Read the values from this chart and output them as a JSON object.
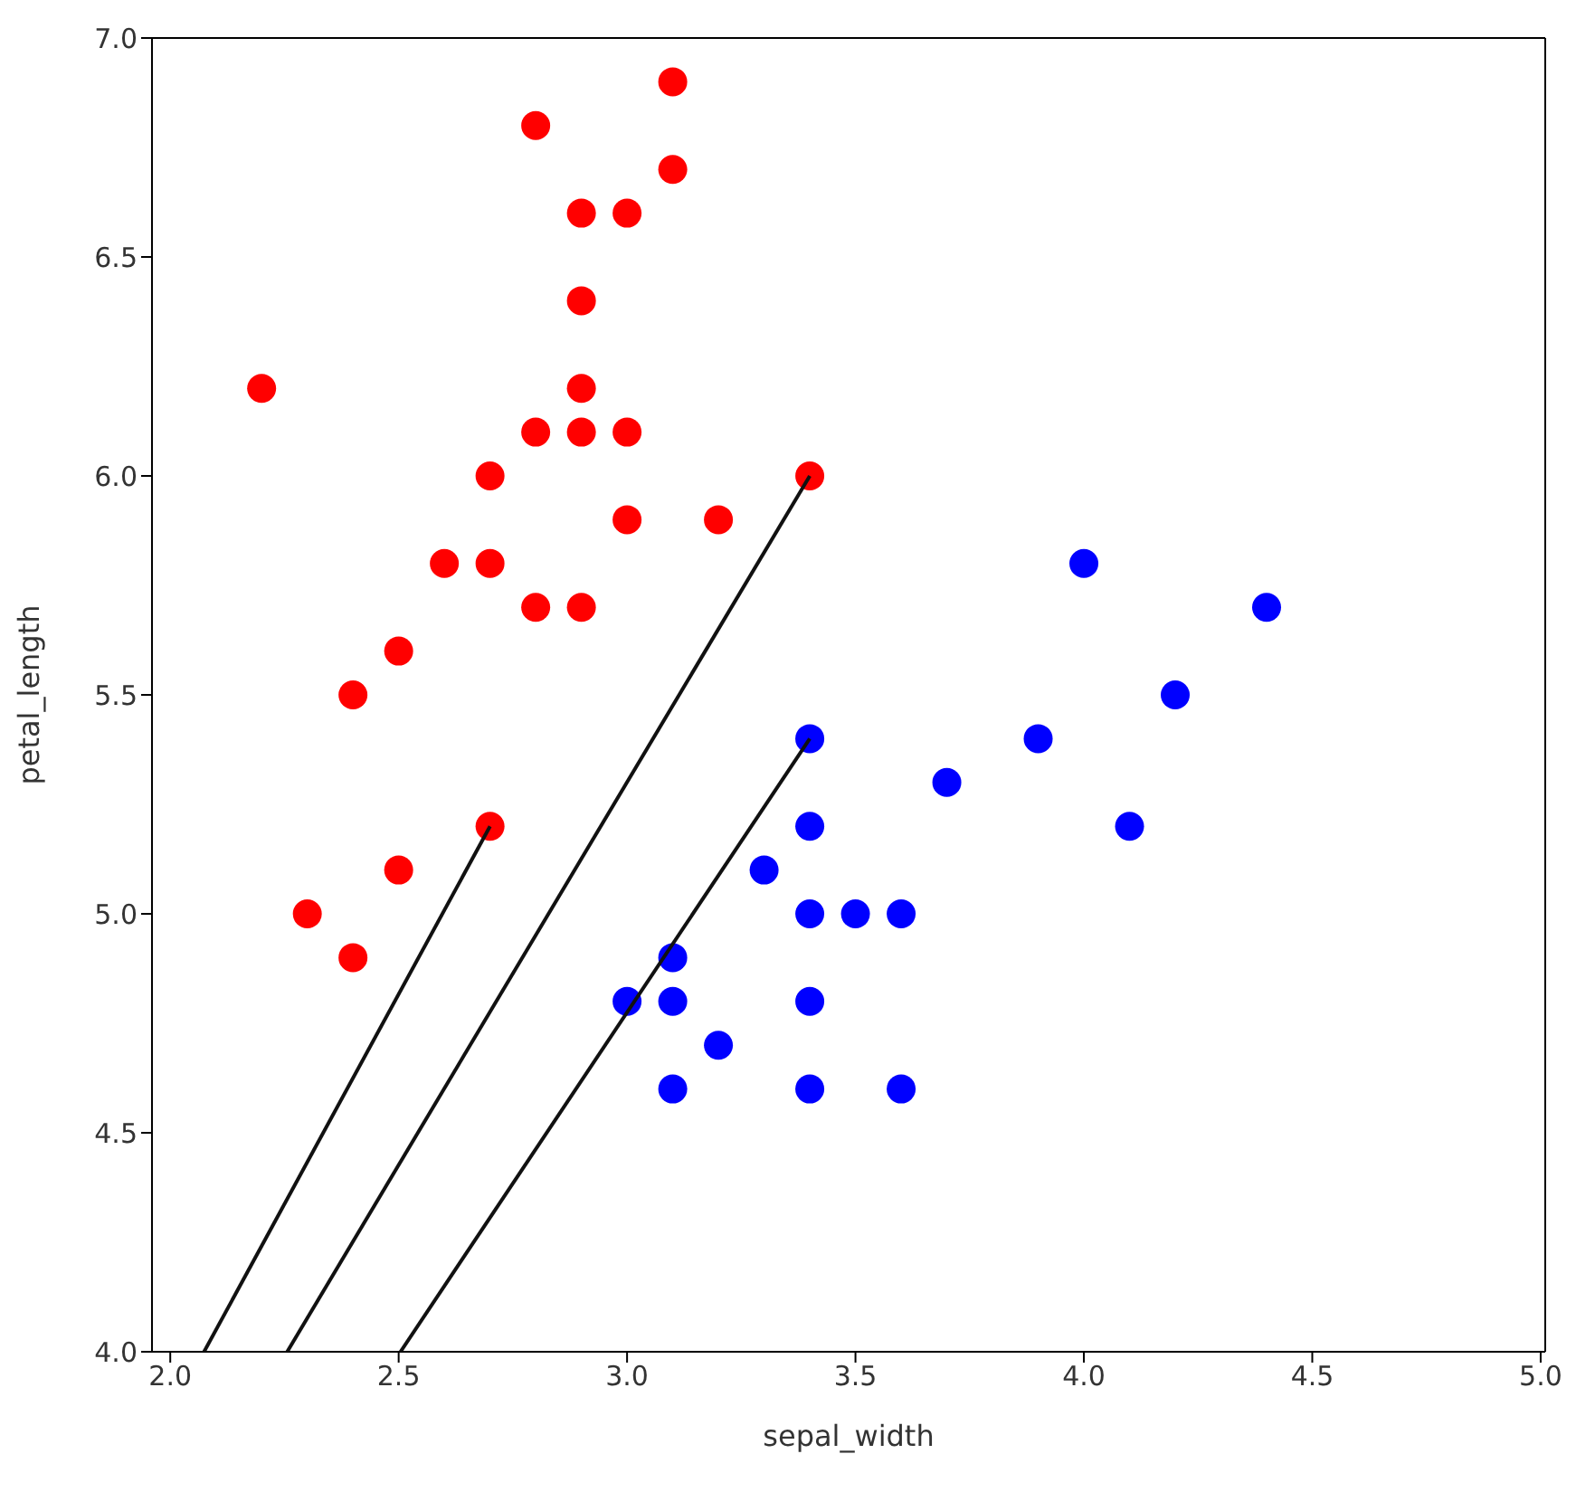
{
  "chart_data": {
    "type": "scatter",
    "xlabel": "sepal_width",
    "ylabel": "petal_length",
    "xlim": [
      1.96,
      5.01
    ],
    "ylim": [
      4,
      7
    ],
    "xticks": [
      {
        "value": 2,
        "label": "2.0"
      },
      {
        "value": 2.5,
        "label": "2.5"
      },
      {
        "value": 3,
        "label": "3.0"
      },
      {
        "value": 3.5,
        "label": "3.5"
      },
      {
        "value": 4,
        "label": "4.0"
      },
      {
        "value": 4.5,
        "label": "4.5"
      },
      {
        "value": 5,
        "label": "5.0"
      }
    ],
    "yticks": [
      {
        "value": 4,
        "label": "4.0"
      },
      {
        "value": 4.5,
        "label": "4.5"
      },
      {
        "value": 5,
        "label": "5.0"
      },
      {
        "value": 5.5,
        "label": "5.5"
      },
      {
        "value": 6,
        "label": "6.0"
      },
      {
        "value": 6.5,
        "label": "6.5"
      },
      {
        "value": 7,
        "label": "7.0"
      }
    ],
    "grid": false,
    "legend": false,
    "marker": "circle",
    "series": [
      {
        "color": "#ff0000",
        "x": [
          2.2,
          2.3,
          2.4,
          2.4,
          2.5,
          2.5,
          2.6,
          2.7,
          2.7,
          2.7,
          2.8,
          2.8,
          2.8,
          2.9,
          2.9,
          2.9,
          2.9,
          2.9,
          3.0,
          3.0,
          3.0,
          3.1,
          3.1,
          3.2,
          3.4
        ],
        "values": [
          6.2,
          5.0,
          4.9,
          5.5,
          5.1,
          5.6,
          5.8,
          6.0,
          5.8,
          5.2,
          6.8,
          6.1,
          5.7,
          6.6,
          6.4,
          6.2,
          6.1,
          5.7,
          6.6,
          6.1,
          5.9,
          6.9,
          6.7,
          5.9,
          6.0
        ]
      },
      {
        "color": "#0000ff",
        "x": [
          3.0,
          3.1,
          3.1,
          3.1,
          3.2,
          3.3,
          3.4,
          3.4,
          3.4,
          3.4,
          3.4,
          3.5,
          3.6,
          3.6,
          3.7,
          3.9,
          4.0,
          4.1,
          4.2,
          4.4
        ],
        "values": [
          4.8,
          4.9,
          4.8,
          4.6,
          4.7,
          5.1,
          5.4,
          5.2,
          5.0,
          4.8,
          4.6,
          5.0,
          5.0,
          4.6,
          5.3,
          5.4,
          5.8,
          5.2,
          5.5,
          5.7
        ]
      },
      {
        "type": "line",
        "color": "#111111",
        "line_style": "solid",
        "x": [
          2.074,
          2.7
        ],
        "values": [
          4,
          5.2
        ],
        "marker": "none"
      },
      {
        "type": "line",
        "color": "#111111",
        "line_style": "solid",
        "x": [
          2.256,
          3.4
        ],
        "values": [
          4,
          6.0
        ],
        "marker": "none"
      },
      {
        "type": "line",
        "color": "#111111",
        "line_style": "solid",
        "x": [
          2.504,
          3.4
        ],
        "values": [
          4,
          5.4
        ],
        "marker": "none"
      }
    ]
  }
}
